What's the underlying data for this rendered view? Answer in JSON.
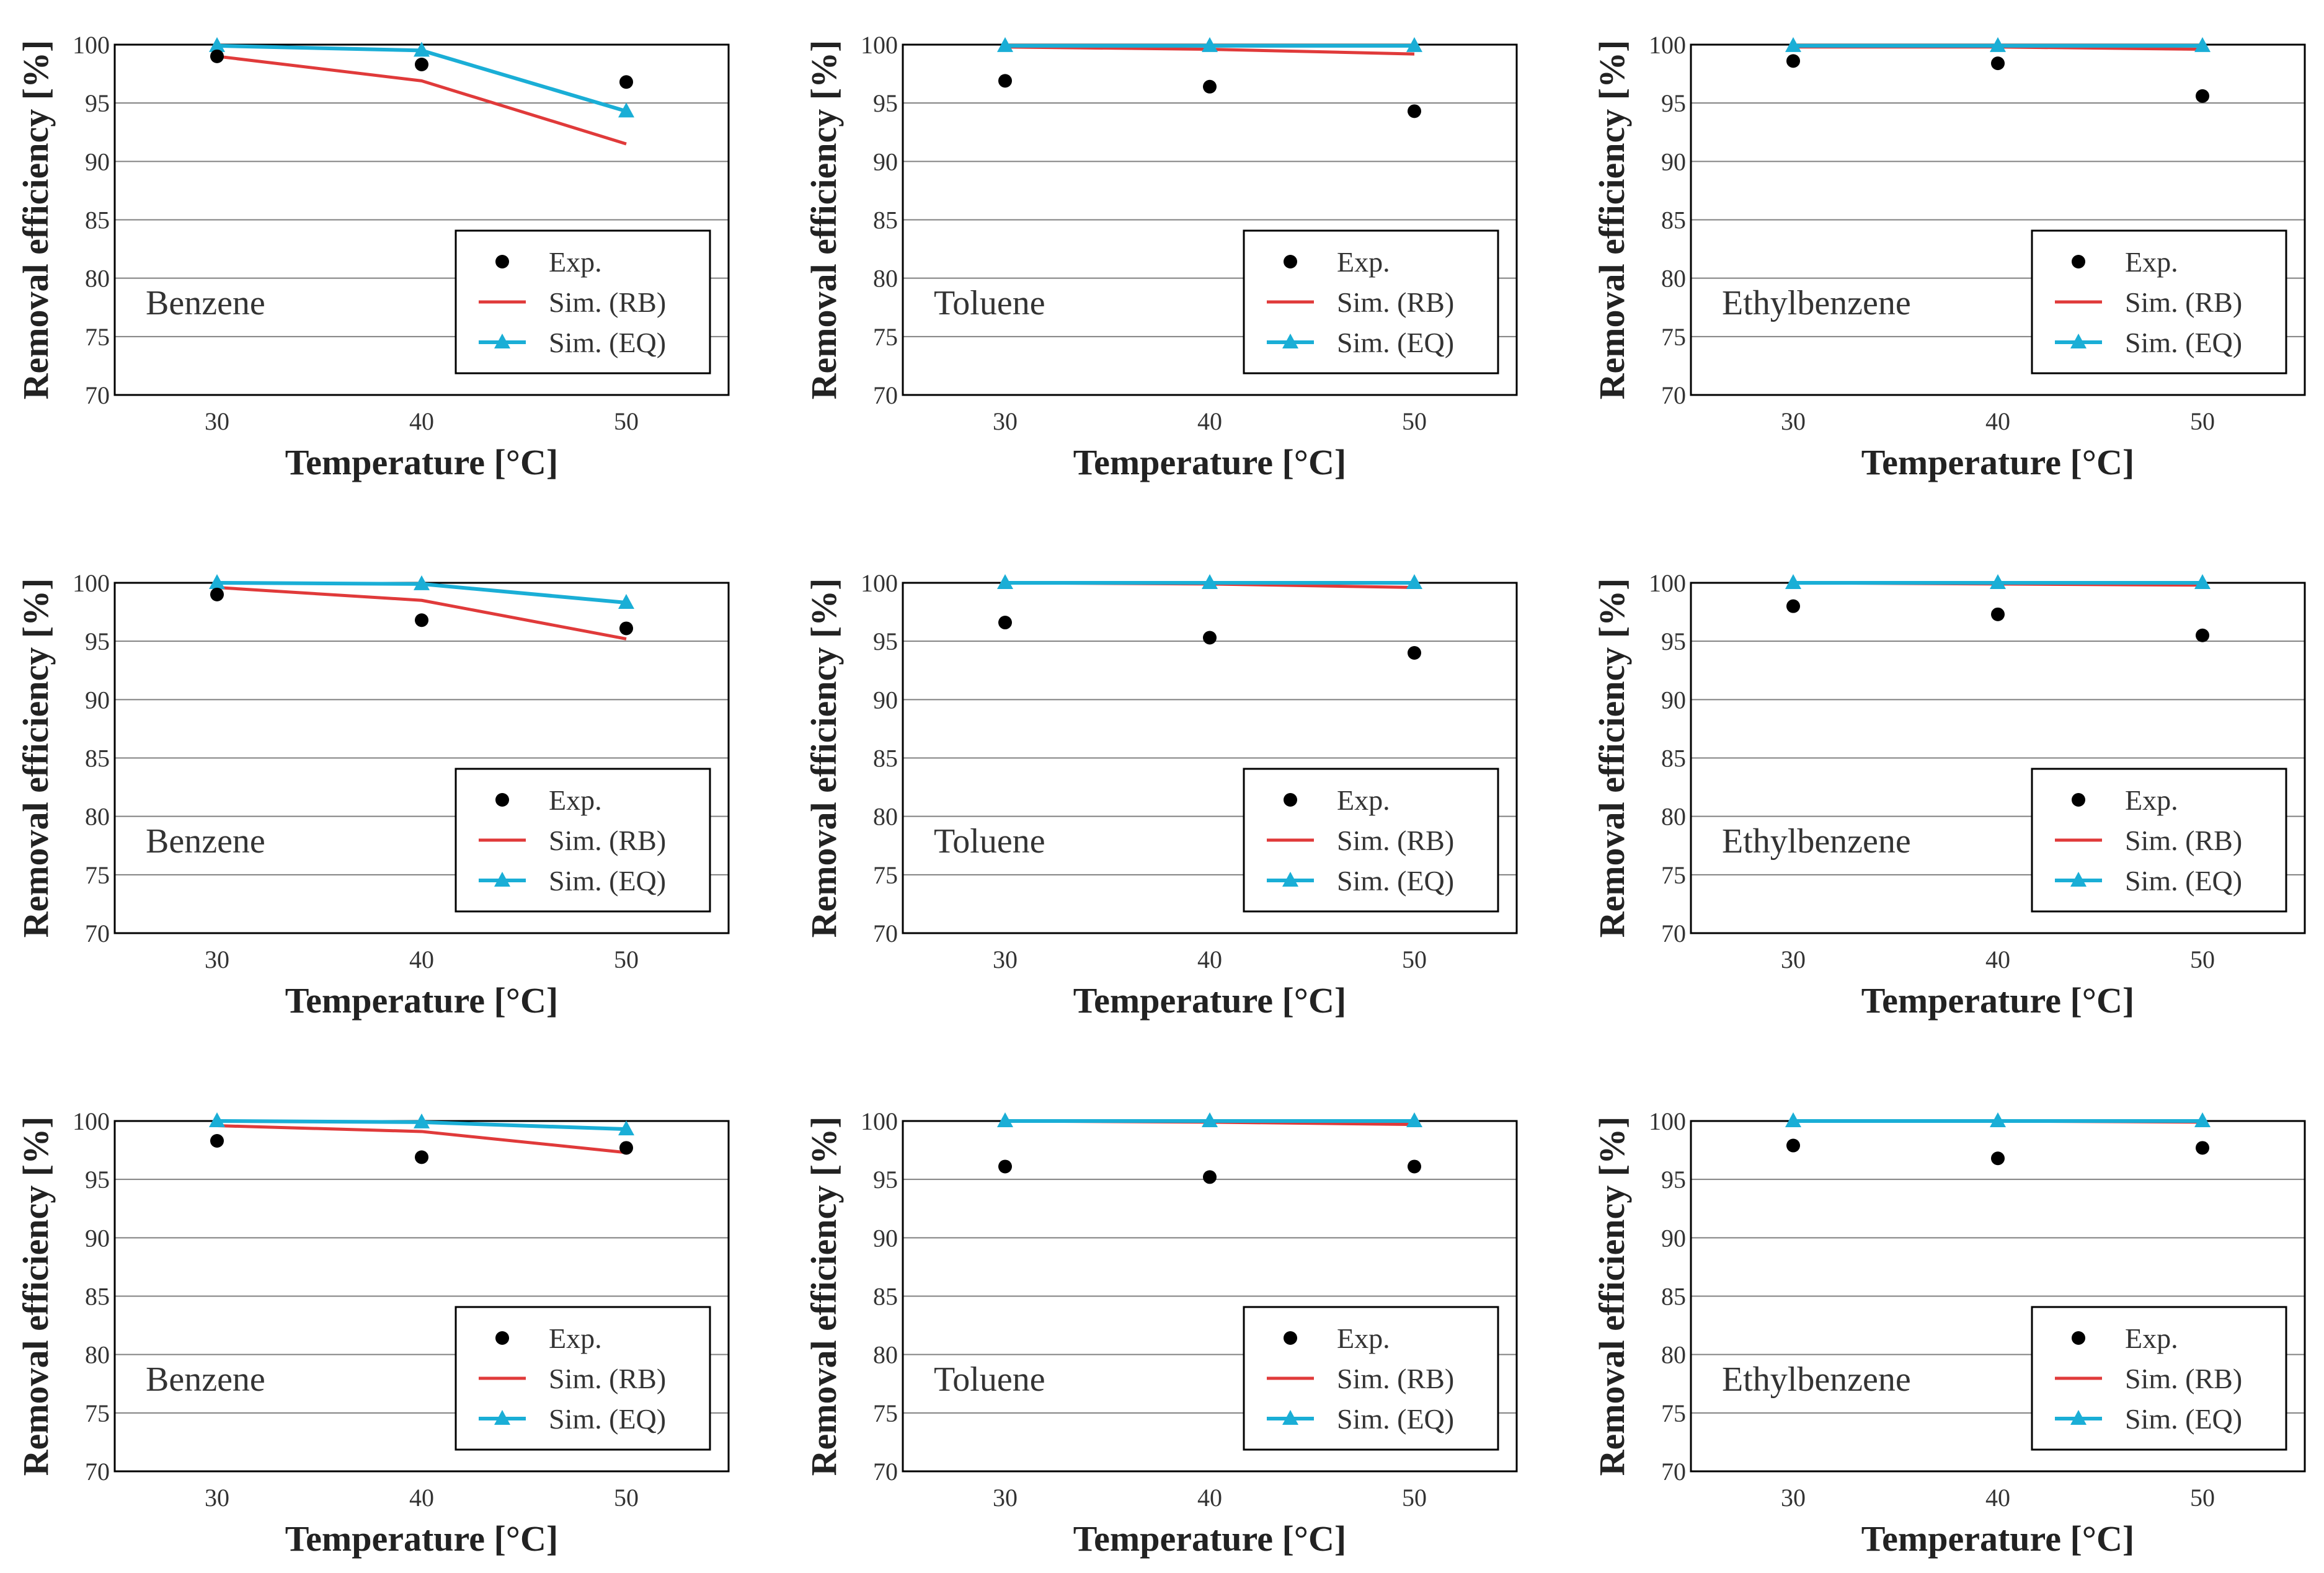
{
  "figure": {
    "colors": {
      "exp": "#000000",
      "sim_rb": "#e03a3a",
      "sim_eq": "#1aaed6",
      "grid": "#808080",
      "frame": "#000000"
    }
  },
  "chart_data": [
    {
      "type": "line",
      "panel_label": "Benzene",
      "x": [
        30,
        40,
        50
      ],
      "xticks": [
        "30",
        "40",
        "50"
      ],
      "xlim": [
        25,
        55
      ],
      "ylim": [
        70,
        100
      ],
      "yticks": [
        "70",
        "75",
        "80",
        "85",
        "90",
        "95",
        "100"
      ],
      "grid": true,
      "xlabel": "Temperature [°C]",
      "ylabel": "Removal efficiency [%]",
      "legend_position": "bottom-right",
      "series": [
        {
          "name": "Exp.",
          "style": "scatter",
          "values": [
            99.0,
            98.3,
            96.8
          ]
        },
        {
          "name": "Sim. (RB)",
          "style": "line",
          "values": [
            99.0,
            96.9,
            91.5
          ]
        },
        {
          "name": "Sim. (EQ)",
          "style": "line-triangle",
          "values": [
            99.9,
            99.5,
            94.3
          ]
        }
      ]
    },
    {
      "type": "line",
      "panel_label": "Toluene",
      "x": [
        30,
        40,
        50
      ],
      "xticks": [
        "30",
        "40",
        "50"
      ],
      "xlim": [
        25,
        55
      ],
      "ylim": [
        70,
        100
      ],
      "yticks": [
        "70",
        "75",
        "80",
        "85",
        "90",
        "95",
        "100"
      ],
      "grid": true,
      "xlabel": "Temperature [°C]",
      "ylabel": "Removal efficiency [%]",
      "legend_position": "bottom-right",
      "series": [
        {
          "name": "Exp.",
          "style": "scatter",
          "values": [
            96.9,
            96.4,
            94.3
          ]
        },
        {
          "name": "Sim. (RB)",
          "style": "line",
          "values": [
            99.8,
            99.6,
            99.2
          ]
        },
        {
          "name": "Sim. (EQ)",
          "style": "line-triangle",
          "values": [
            99.9,
            99.9,
            99.9
          ]
        }
      ]
    },
    {
      "type": "line",
      "panel_label": "Ethylbenzene",
      "x": [
        30,
        40,
        50
      ],
      "xticks": [
        "30",
        "40",
        "50"
      ],
      "xlim": [
        25,
        55
      ],
      "ylim": [
        70,
        100
      ],
      "yticks": [
        "70",
        "75",
        "80",
        "85",
        "90",
        "95",
        "100"
      ],
      "grid": true,
      "xlabel": "Temperature [°C]",
      "ylabel": "Removal efficiency [%]",
      "legend_position": "bottom-right",
      "series": [
        {
          "name": "Exp.",
          "style": "scatter",
          "values": [
            98.6,
            98.4,
            95.6
          ]
        },
        {
          "name": "Sim. (RB)",
          "style": "line",
          "values": [
            99.8,
            99.8,
            99.6
          ]
        },
        {
          "name": "Sim. (EQ)",
          "style": "line-triangle",
          "values": [
            99.9,
            99.9,
            99.9
          ]
        }
      ]
    },
    {
      "type": "line",
      "panel_label": "Benzene",
      "x": [
        30,
        40,
        50
      ],
      "xticks": [
        "30",
        "40",
        "50"
      ],
      "xlim": [
        25,
        55
      ],
      "ylim": [
        70,
        100
      ],
      "yticks": [
        "70",
        "75",
        "80",
        "85",
        "90",
        "95",
        "100"
      ],
      "grid": true,
      "xlabel": "Temperature [°C]",
      "ylabel": "Removal efficiency [%]",
      "legend_position": "bottom-right",
      "series": [
        {
          "name": "Exp.",
          "style": "scatter",
          "values": [
            99.0,
            96.8,
            96.1
          ]
        },
        {
          "name": "Sim. (RB)",
          "style": "line",
          "values": [
            99.6,
            98.5,
            95.2
          ]
        },
        {
          "name": "Sim. (EQ)",
          "style": "line-triangle",
          "values": [
            100.0,
            99.9,
            98.3
          ]
        }
      ]
    },
    {
      "type": "line",
      "panel_label": "Toluene",
      "x": [
        30,
        40,
        50
      ],
      "xticks": [
        "30",
        "40",
        "50"
      ],
      "xlim": [
        25,
        55
      ],
      "ylim": [
        70,
        100
      ],
      "yticks": [
        "70",
        "75",
        "80",
        "85",
        "90",
        "95",
        "100"
      ],
      "grid": true,
      "xlabel": "Temperature [°C]",
      "ylabel": "Removal efficiency [%]",
      "legend_position": "bottom-right",
      "series": [
        {
          "name": "Exp.",
          "style": "scatter",
          "values": [
            96.6,
            95.3,
            94.0
          ]
        },
        {
          "name": "Sim. (RB)",
          "style": "line",
          "values": [
            100.0,
            99.9,
            99.6
          ]
        },
        {
          "name": "Sim. (EQ)",
          "style": "line-triangle",
          "values": [
            100.0,
            100.0,
            100.0
          ]
        }
      ]
    },
    {
      "type": "line",
      "panel_label": "Ethylbenzene",
      "x": [
        30,
        40,
        50
      ],
      "xticks": [
        "30",
        "40",
        "50"
      ],
      "xlim": [
        25,
        55
      ],
      "ylim": [
        70,
        100
      ],
      "yticks": [
        "70",
        "75",
        "80",
        "85",
        "90",
        "95",
        "100"
      ],
      "grid": true,
      "xlabel": "Temperature [°C]",
      "ylabel": "Removal efficiency [%]",
      "legend_position": "bottom-right",
      "series": [
        {
          "name": "Exp.",
          "style": "scatter",
          "values": [
            98.0,
            97.3,
            95.5
          ]
        },
        {
          "name": "Sim. (RB)",
          "style": "line",
          "values": [
            100.0,
            99.9,
            99.8
          ]
        },
        {
          "name": "Sim. (EQ)",
          "style": "line-triangle",
          "values": [
            100.0,
            100.0,
            100.0
          ]
        }
      ]
    },
    {
      "type": "line",
      "panel_label": "Benzene",
      "x": [
        30,
        40,
        50
      ],
      "xticks": [
        "30",
        "40",
        "50"
      ],
      "xlim": [
        25,
        55
      ],
      "ylim": [
        70,
        100
      ],
      "yticks": [
        "70",
        "75",
        "80",
        "85",
        "90",
        "95",
        "100"
      ],
      "grid": true,
      "xlabel": "Temperature [°C]",
      "ylabel": "Removal efficiency [%]",
      "legend_position": "bottom-right",
      "series": [
        {
          "name": "Exp.",
          "style": "scatter",
          "values": [
            98.3,
            96.9,
            97.7
          ]
        },
        {
          "name": "Sim. (RB)",
          "style": "line",
          "values": [
            99.6,
            99.1,
            97.3
          ]
        },
        {
          "name": "Sim. (EQ)",
          "style": "line-triangle",
          "values": [
            100.0,
            99.9,
            99.3
          ]
        }
      ]
    },
    {
      "type": "line",
      "panel_label": "Toluene",
      "x": [
        30,
        40,
        50
      ],
      "xticks": [
        "30",
        "40",
        "50"
      ],
      "xlim": [
        25,
        55
      ],
      "ylim": [
        70,
        100
      ],
      "yticks": [
        "70",
        "75",
        "80",
        "85",
        "90",
        "95",
        "100"
      ],
      "grid": true,
      "xlabel": "Temperature [°C]",
      "ylabel": "Removal efficiency [%]",
      "legend_position": "bottom-right",
      "series": [
        {
          "name": "Exp.",
          "style": "scatter",
          "values": [
            96.1,
            95.2,
            96.1
          ]
        },
        {
          "name": "Sim. (RB)",
          "style": "line",
          "values": [
            100.0,
            99.9,
            99.7
          ]
        },
        {
          "name": "Sim. (EQ)",
          "style": "line-triangle",
          "values": [
            100.0,
            100.0,
            100.0
          ]
        }
      ]
    },
    {
      "type": "line",
      "panel_label": "Ethylbenzene",
      "x": [
        30,
        40,
        50
      ],
      "xticks": [
        "30",
        "40",
        "50"
      ],
      "xlim": [
        25,
        55
      ],
      "ylim": [
        70,
        100
      ],
      "yticks": [
        "70",
        "75",
        "80",
        "85",
        "90",
        "95",
        "100"
      ],
      "grid": true,
      "xlabel": "Temperature [°C]",
      "ylabel": "Removal efficiency [%]",
      "legend_position": "bottom-right",
      "series": [
        {
          "name": "Exp.",
          "style": "scatter",
          "values": [
            97.9,
            96.8,
            97.7
          ]
        },
        {
          "name": "Sim. (RB)",
          "style": "line",
          "values": [
            100.0,
            100.0,
            99.9
          ]
        },
        {
          "name": "Sim. (EQ)",
          "style": "line-triangle",
          "values": [
            100.0,
            100.0,
            100.0
          ]
        }
      ]
    }
  ]
}
